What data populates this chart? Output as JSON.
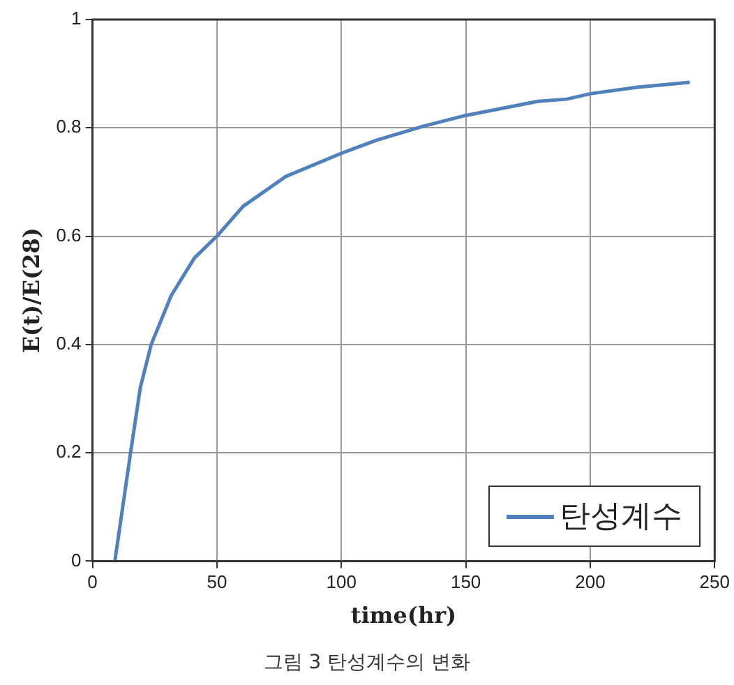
{
  "chart_data": {
    "type": "line",
    "xlabel": "time(hr)",
    "ylabel": "E(t)/E(28)",
    "x": [
      9,
      15.3,
      19.2,
      23.6,
      31.6,
      41,
      50,
      60.5,
      77.6,
      100,
      114,
      133,
      150,
      179,
      190.6,
      200,
      219,
      240
    ],
    "series": [
      {
        "name": "탄성계수",
        "color": "#4f81bd",
        "values": [
          0,
          0.2,
          0.32,
          0.4,
          0.49,
          0.56,
          0.6,
          0.655,
          0.71,
          0.753,
          0.777,
          0.803,
          0.823,
          0.849,
          0.853,
          0.863,
          0.875,
          0.884
        ]
      }
    ],
    "xlim": [
      0,
      250
    ],
    "xticks": [
      0,
      50,
      100,
      150,
      200,
      250
    ],
    "ylim": [
      0,
      1
    ],
    "yticks": [
      0,
      0.2,
      0.4,
      0.6,
      0.8,
      1
    ],
    "grid": true,
    "legend": "bottom right",
    "marker": "none",
    "line_style": "solid",
    "annotations": [
      "그림 3 탄성계수의 변화"
    ]
  }
}
